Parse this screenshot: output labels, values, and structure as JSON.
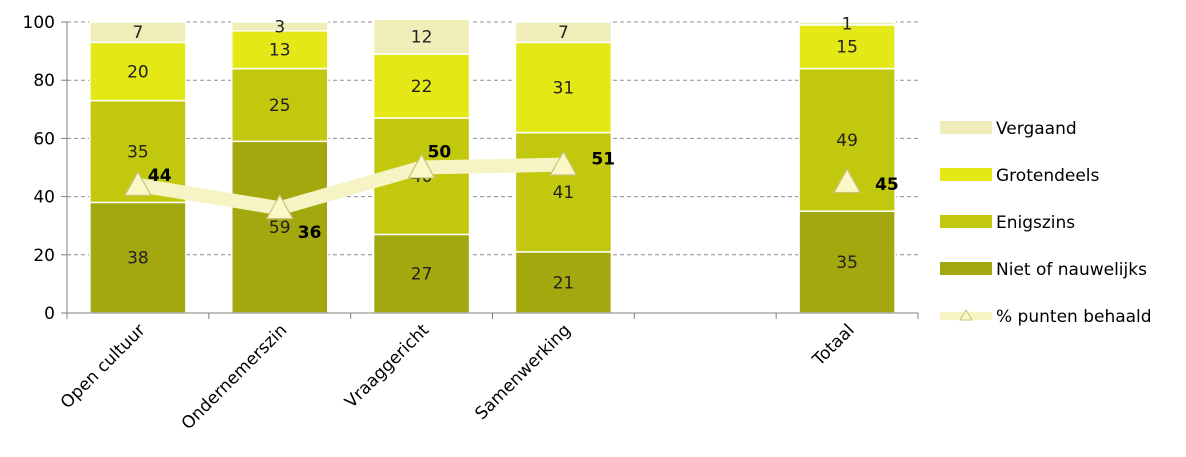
{
  "chart_data": {
    "type": "bar",
    "stacked": true,
    "categories": [
      "Open cultuur",
      "Ondernemerszin",
      "Vraaggericht",
      "Samenwerking",
      "",
      "Totaal"
    ],
    "ylim": [
      0,
      100
    ],
    "yticks": [
      0,
      20,
      40,
      60,
      80,
      100
    ],
    "grid": true,
    "legend_position": "right",
    "series": [
      {
        "name": "Niet of nauwelijks",
        "color": "#a3a80f",
        "values": [
          38,
          59,
          27,
          21,
          null,
          35
        ]
      },
      {
        "name": "Enigszins",
        "color": "#c2c80e",
        "values": [
          35,
          25,
          40,
          41,
          null,
          49
        ]
      },
      {
        "name": "Grotendeels",
        "color": "#e3e816",
        "values": [
          20,
          13,
          22,
          31,
          null,
          15
        ]
      },
      {
        "name": "Vergaand",
        "color": "#efeeb9",
        "values": [
          7,
          3,
          12,
          7,
          null,
          1
        ]
      }
    ],
    "line_series": {
      "name": "% punten behaald",
      "color": "#f6f4c4",
      "values": [
        44,
        36,
        50,
        51,
        null,
        45
      ]
    }
  }
}
